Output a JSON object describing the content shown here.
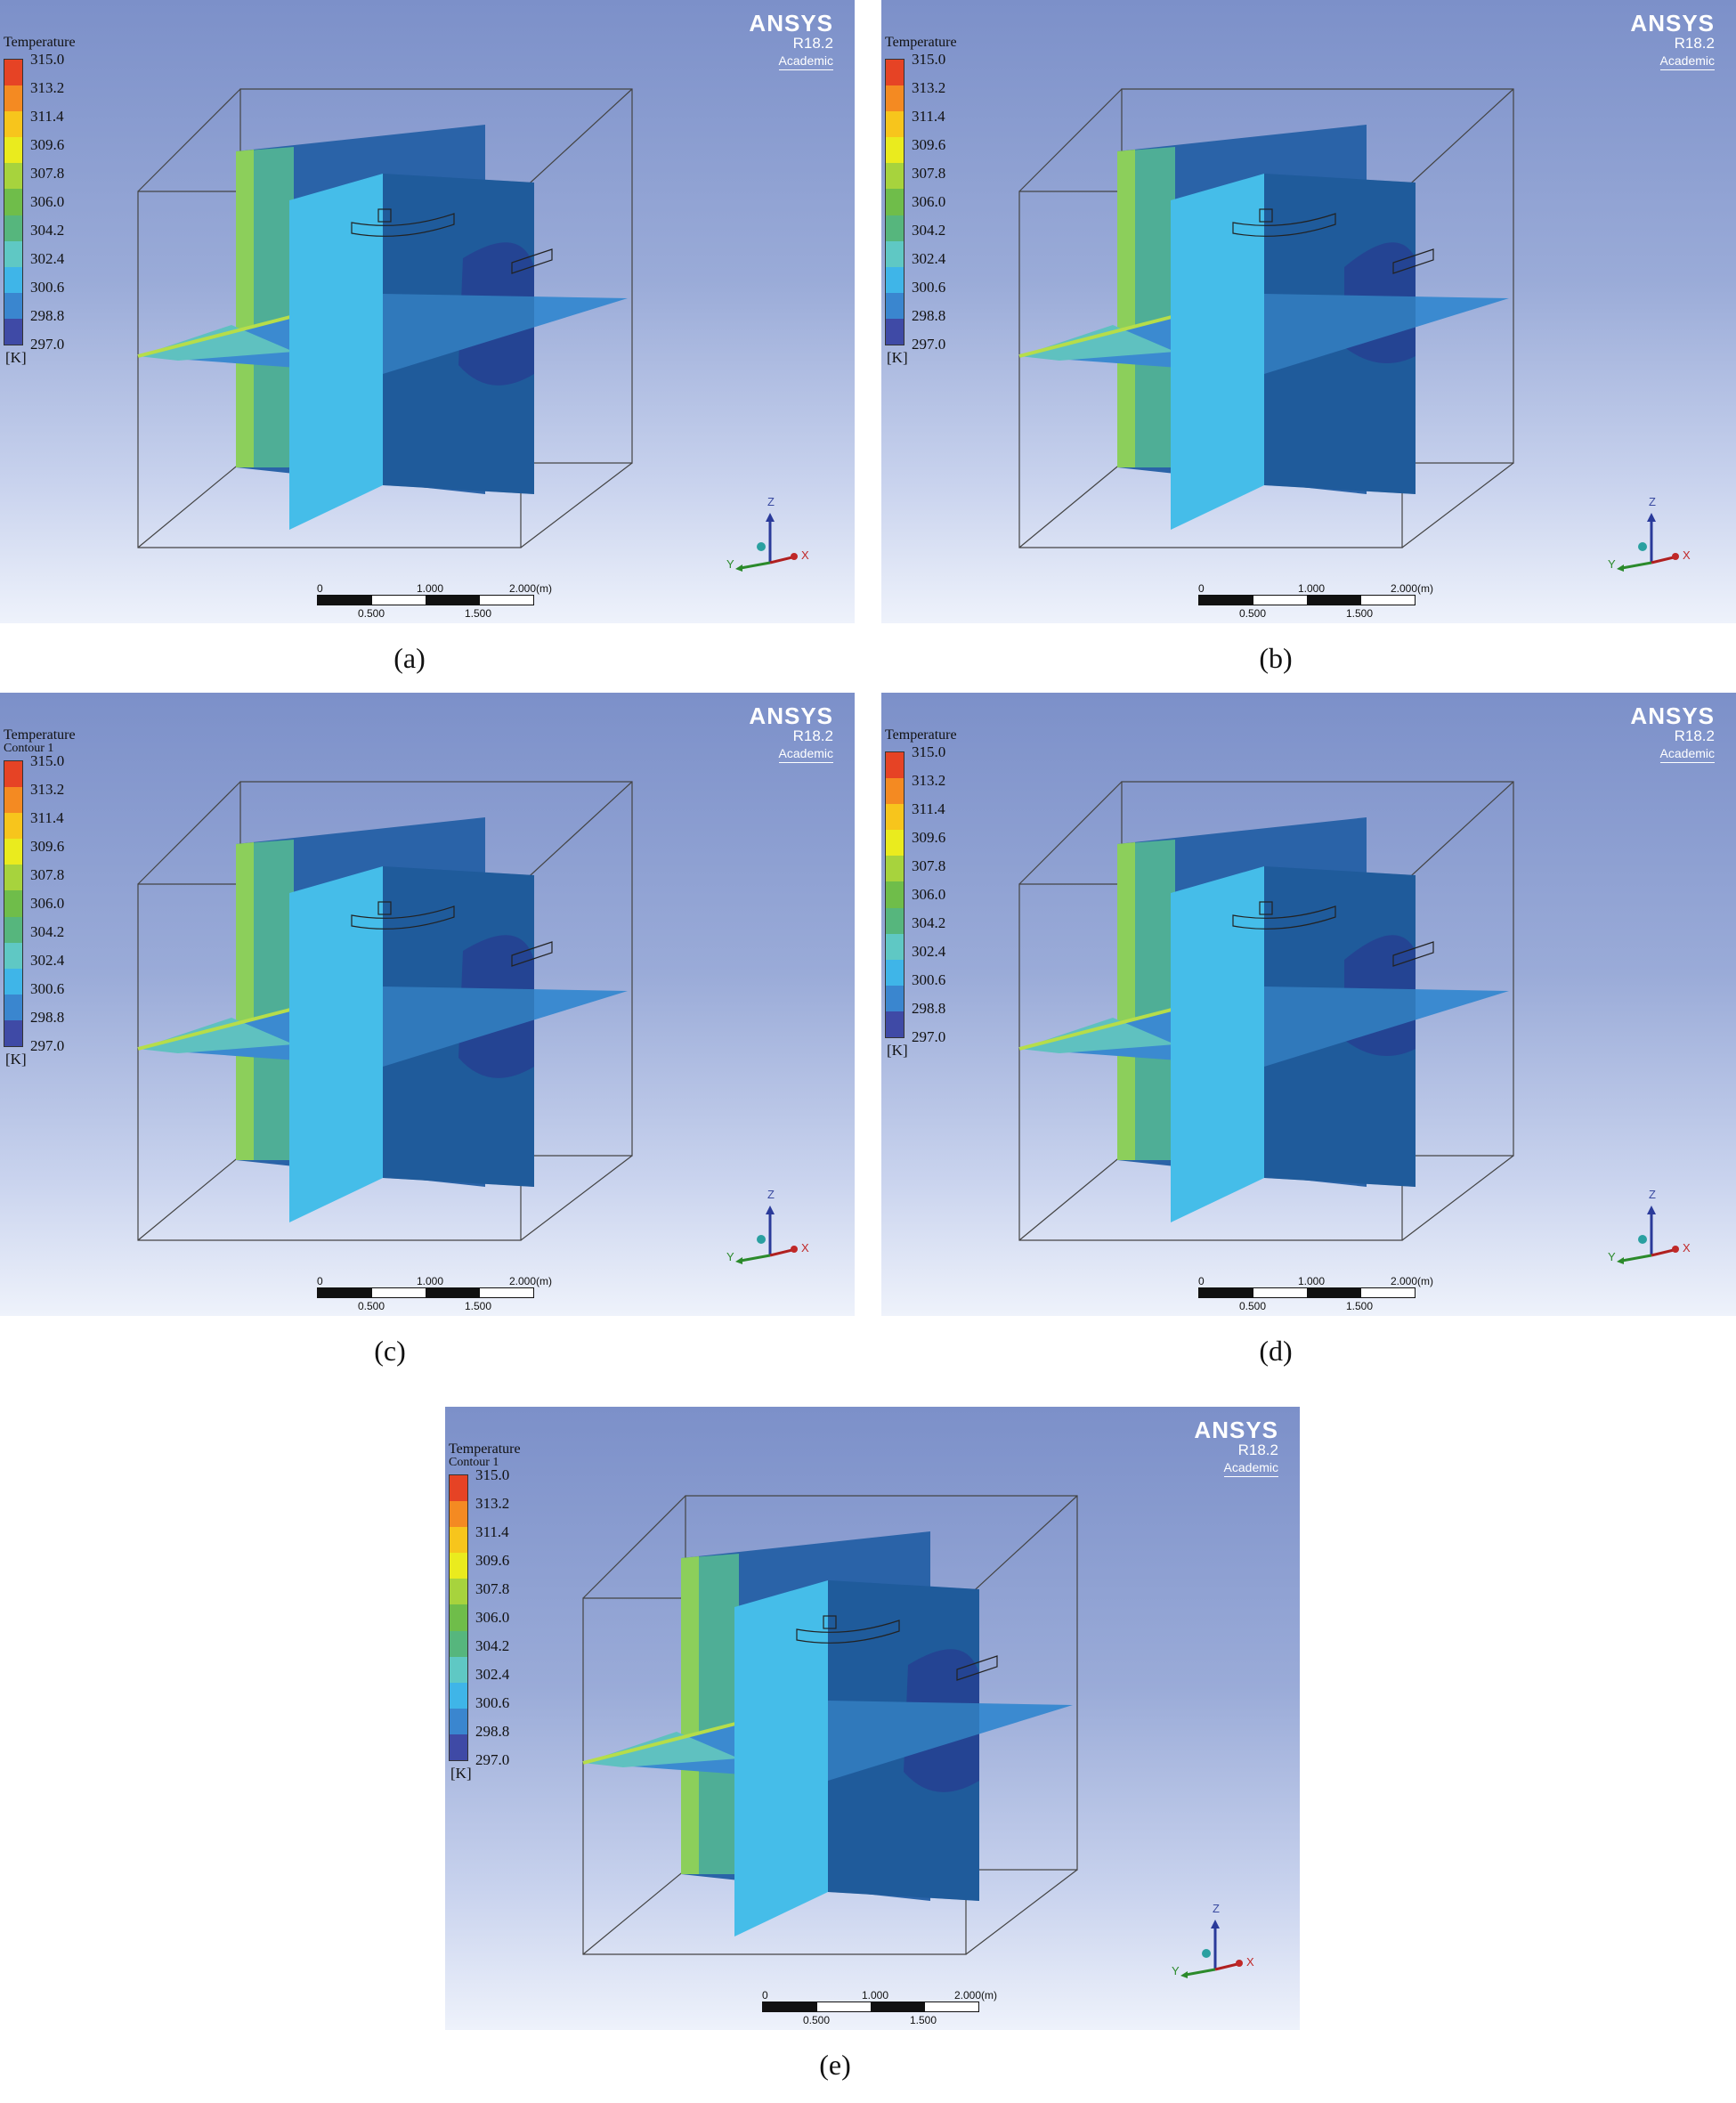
{
  "legend": {
    "title": "Temperature",
    "ticks": [
      "315.0",
      "313.2",
      "311.4",
      "309.6",
      "307.8",
      "306.0",
      "304.2",
      "302.4",
      "300.6",
      "298.8",
      "297.0"
    ],
    "unit": "[K]",
    "colors": [
      "#e64325",
      "#f48a22",
      "#f7c51c",
      "#eaeb1e",
      "#a7d33d",
      "#6fbd4a",
      "#56b67d",
      "#5fc8c4",
      "#3fb5e8",
      "#3a86cf",
      "#3f4aa6"
    ]
  },
  "brand": {
    "name": "ANSYS",
    "version": "R18.2",
    "edition": "Academic"
  },
  "scalebar": {
    "top": [
      "0",
      "1.000",
      "2.000",
      "(m)"
    ],
    "bottom": [
      "0.500",
      "1.500"
    ]
  },
  "triad": {
    "z": "Z",
    "y": "Y",
    "x": "X"
  },
  "panels": [
    {
      "id": "a",
      "caption": "(a)",
      "subtitle": ""
    },
    {
      "id": "b",
      "caption": "(b)",
      "subtitle": ""
    },
    {
      "id": "c",
      "caption": "(c)",
      "subtitle": "Contour 1"
    },
    {
      "id": "d",
      "caption": "(d)",
      "subtitle": ""
    },
    {
      "id": "e",
      "caption": "(e)",
      "subtitle": "Contour 1"
    }
  ]
}
